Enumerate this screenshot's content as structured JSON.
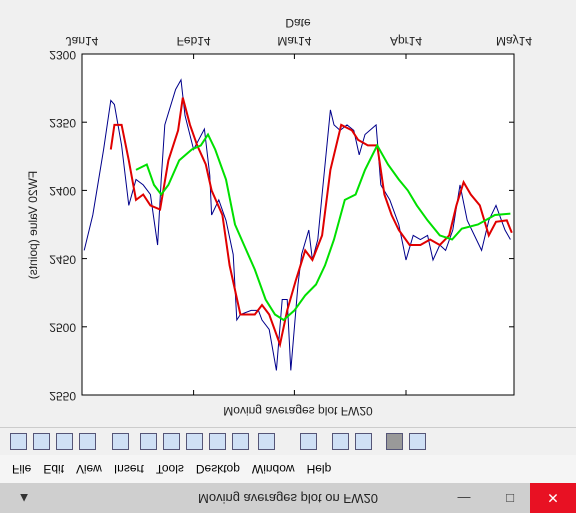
{
  "window": {
    "title": "Moving averages plot on FW20"
  },
  "menu": [
    "File",
    "Edit",
    "View",
    "Insert",
    "Tools",
    "Desktop",
    "Window",
    "Help"
  ],
  "chart_data": {
    "type": "line",
    "title": "Moving averages plot FW20",
    "x_label": "Date",
    "y_label": "FW20 Value (points)",
    "xlim": [
      735600,
      735720
    ],
    "xticks": [
      {
        "value": 735600,
        "label": "Jan14"
      },
      {
        "value": 735631,
        "label": "Feb14"
      },
      {
        "value": 735659,
        "label": "Mar14"
      },
      {
        "value": 735690,
        "label": "Apr14"
      },
      {
        "value": 735720,
        "label": "May14"
      }
    ],
    "ylim": [
      2300,
      2550
    ],
    "yticks": [
      2300,
      2350,
      2400,
      2450,
      2500,
      2550
    ],
    "series": [
      {
        "color": "#00008b",
        "x": [
          735600.6,
          735603,
          735606,
          735608,
          735609,
          735611,
          735613,
          735615,
          735617,
          735619,
          735621,
          735622,
          735623,
          735626,
          735627.5,
          735628.6,
          735631,
          735634,
          735635.5,
          735636,
          735638,
          735640,
          735642,
          735643,
          735644,
          735647,
          735649,
          735650,
          735652,
          735654,
          735655.6,
          735657,
          735658,
          735660,
          735661,
          735663,
          735664,
          735665.5,
          735666.7,
          735669,
          735670,
          735671.7,
          735673.6,
          735675.5,
          735677,
          735678.6,
          735681.7,
          735683,
          735685.5,
          735688,
          735690,
          735692,
          735694,
          735696,
          735697.5,
          735699.4,
          735701,
          735703,
          735705,
          735707,
          735709,
          735711,
          735713,
          735715,
          735717.5,
          735719
        ],
        "values": [
          2444,
          2418,
          2370,
          2334,
          2337,
          2367,
          2411,
          2392,
          2396,
          2403,
          2440,
          2392,
          2352,
          2326,
          2319,
          2345,
          2370,
          2355,
          2389,
          2418,
          2407,
          2422,
          2447,
          2495,
          2491,
          2488,
          2488,
          2495,
          2502,
          2532,
          2480,
          2480,
          2532,
          2469,
          2447,
          2429,
          2451,
          2436,
          2403,
          2341,
          2352,
          2356,
          2352,
          2356,
          2374,
          2359,
          2352,
          2396,
          2407,
          2425,
          2451,
          2433,
          2436,
          2433,
          2451,
          2440,
          2444,
          2429,
          2396,
          2422,
          2433,
          2444,
          2422,
          2411,
          2429,
          2436
        ]
      },
      {
        "color": "#e00000",
        "x": [
          735608,
          735609,
          735611,
          735613,
          735615,
          735617,
          735619,
          735621.7,
          735624,
          735626.7,
          735628,
          735630,
          735632,
          735634.4,
          735636,
          735639,
          735641,
          735644,
          735648,
          735650,
          735652,
          735655,
          735657,
          735659.4,
          735662,
          735664,
          735666.7,
          735669,
          735672,
          735675,
          735676.7,
          735679.4,
          735682,
          735684,
          735686,
          735688,
          735691,
          735694,
          735696.7,
          735699.4,
          735702,
          735704,
          735706,
          735708,
          735710.5,
          735713,
          735715,
          735718,
          735719.4
        ],
        "values": [
          2370,
          2352,
          2352,
          2378,
          2407,
          2403,
          2411,
          2414,
          2378,
          2356,
          2332,
          2352,
          2367,
          2381,
          2400,
          2418,
          2455,
          2491,
          2491,
          2484,
          2491,
          2513,
          2488,
          2466,
          2444,
          2451,
          2433,
          2385,
          2352,
          2356,
          2363,
          2367,
          2367,
          2403,
          2418,
          2429,
          2440,
          2440,
          2436,
          2440,
          2433,
          2411,
          2394,
          2403,
          2411,
          2433,
          2423,
          2422,
          2431
        ]
      },
      {
        "color": "#00e000",
        "x": [
          735615,
          735618,
          735620,
          735622,
          735624,
          735627,
          735630.5,
          735633,
          735635,
          735637,
          735640,
          735642.5,
          735645,
          735648,
          735651,
          735653.6,
          735656,
          735659,
          735662,
          735665,
          735667.5,
          735670,
          735673,
          735676,
          735678.6,
          735682,
          735685,
          735688,
          735690.5,
          735693,
          735696,
          735699.4,
          735702.8,
          735705.5,
          735710,
          735714.7,
          735719
        ],
        "values": [
          2385,
          2381,
          2396,
          2403,
          2396,
          2378,
          2370,
          2367,
          2359,
          2370,
          2392,
          2425,
          2440,
          2458,
          2480,
          2491,
          2495,
          2488,
          2477,
          2469,
          2455,
          2436,
          2407,
          2403,
          2385,
          2367,
          2381,
          2392,
          2400,
          2411,
          2422,
          2433,
          2436,
          2428,
          2425,
          2418,
          2417
        ]
      }
    ]
  }
}
